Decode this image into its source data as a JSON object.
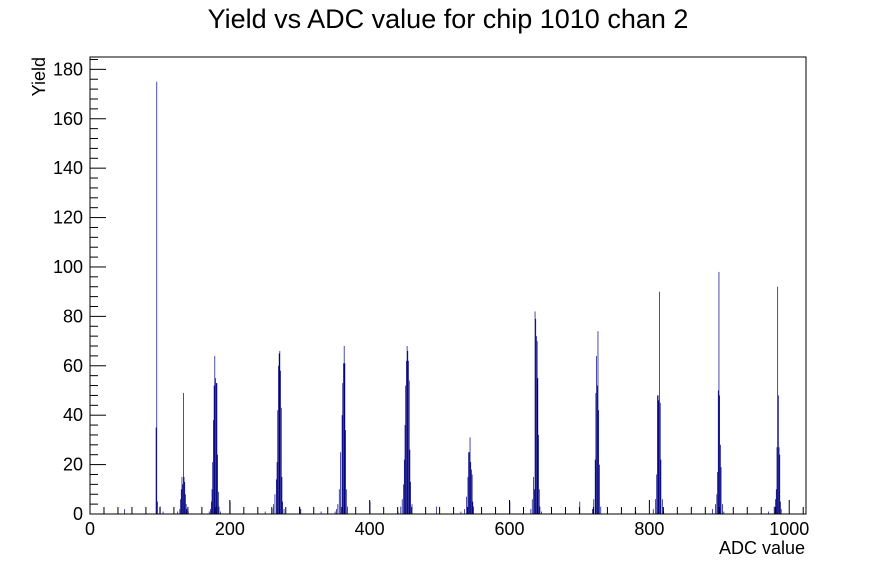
{
  "chart_data": {
    "type": "bar",
    "title": "Yield vs ADC value for chip 1010 chan 2",
    "xlabel": "ADC value",
    "ylabel": "Yield",
    "xlim": [
      0,
      1024
    ],
    "ylim": [
      0,
      185
    ],
    "x_ticks": [
      "0",
      "200",
      "400",
      "600",
      "800",
      "1000"
    ],
    "y_ticks": [
      "0",
      "20",
      "40",
      "60",
      "80",
      "100",
      "120",
      "140",
      "160",
      "180"
    ],
    "grid": false,
    "legend": "none",
    "bin_width": 1,
    "bins": [
      [
        49,
        2
      ],
      [
        94,
        35
      ],
      [
        95,
        175
      ],
      [
        96,
        5
      ],
      [
        100,
        3
      ],
      [
        104,
        1
      ],
      [
        125,
        1
      ],
      [
        128,
        2
      ],
      [
        129,
        6
      ],
      [
        130,
        10
      ],
      [
        131,
        15
      ],
      [
        132,
        12
      ],
      [
        133,
        49
      ],
      [
        134,
        15
      ],
      [
        135,
        13
      ],
      [
        136,
        8
      ],
      [
        137,
        4
      ],
      [
        138,
        2
      ],
      [
        140,
        1
      ],
      [
        170,
        1
      ],
      [
        172,
        2
      ],
      [
        173,
        5
      ],
      [
        174,
        10
      ],
      [
        175,
        21
      ],
      [
        176,
        38
      ],
      [
        177,
        52
      ],
      [
        178,
        64
      ],
      [
        179,
        55
      ],
      [
        180,
        53
      ],
      [
        181,
        53
      ],
      [
        182,
        24
      ],
      [
        183,
        9
      ],
      [
        184,
        3
      ],
      [
        186,
        1
      ],
      [
        200,
        5
      ],
      [
        250,
        1
      ],
      [
        260,
        2
      ],
      [
        262,
        4
      ],
      [
        264,
        8
      ],
      [
        266,
        14
      ],
      [
        267,
        21
      ],
      [
        268,
        42
      ],
      [
        269,
        60
      ],
      [
        270,
        65
      ],
      [
        271,
        66
      ],
      [
        272,
        58
      ],
      [
        273,
        43
      ],
      [
        274,
        15
      ],
      [
        275,
        5
      ],
      [
        277,
        2
      ],
      [
        299,
        3
      ],
      [
        301,
        2
      ],
      [
        330,
        1
      ],
      [
        350,
        1
      ],
      [
        352,
        2
      ],
      [
        354,
        4
      ],
      [
        356,
        10
      ],
      [
        358,
        25
      ],
      [
        360,
        40
      ],
      [
        361,
        53
      ],
      [
        362,
        61
      ],
      [
        363,
        68
      ],
      [
        364,
        61
      ],
      [
        365,
        34
      ],
      [
        366,
        10
      ],
      [
        368,
        3
      ],
      [
        400,
        5
      ],
      [
        440,
        1
      ],
      [
        444,
        3
      ],
      [
        446,
        6
      ],
      [
        448,
        12
      ],
      [
        449,
        22
      ],
      [
        450,
        36
      ],
      [
        451,
        52
      ],
      [
        452,
        62
      ],
      [
        453,
        68
      ],
      [
        454,
        66
      ],
      [
        455,
        62
      ],
      [
        456,
        54
      ],
      [
        457,
        26
      ],
      [
        458,
        13
      ],
      [
        460,
        4
      ],
      [
        495,
        3
      ],
      [
        530,
        1
      ],
      [
        535,
        2
      ],
      [
        538,
        7
      ],
      [
        540,
        15
      ],
      [
        541,
        25
      ],
      [
        542,
        25
      ],
      [
        543,
        31
      ],
      [
        544,
        21
      ],
      [
        545,
        18
      ],
      [
        546,
        16
      ],
      [
        547,
        5
      ],
      [
        548,
        3
      ],
      [
        600,
        5
      ],
      [
        630,
        2
      ],
      [
        632,
        6
      ],
      [
        634,
        15
      ],
      [
        635,
        10
      ],
      [
        636,
        82
      ],
      [
        637,
        79
      ],
      [
        638,
        72
      ],
      [
        639,
        70
      ],
      [
        640,
        55
      ],
      [
        641,
        32
      ],
      [
        642,
        10
      ],
      [
        643,
        3
      ],
      [
        645,
        1
      ],
      [
        700,
        5
      ],
      [
        718,
        2
      ],
      [
        720,
        6
      ],
      [
        722,
        22
      ],
      [
        723,
        49
      ],
      [
        724,
        64
      ],
      [
        725,
        52
      ],
      [
        726,
        74
      ],
      [
        727,
        42
      ],
      [
        728,
        20
      ],
      [
        730,
        3
      ],
      [
        780,
        1
      ],
      [
        805,
        2
      ],
      [
        808,
        6
      ],
      [
        810,
        16
      ],
      [
        811,
        48
      ],
      [
        812,
        48
      ],
      [
        813,
        46
      ],
      [
        814,
        90
      ],
      [
        815,
        45
      ],
      [
        816,
        22
      ],
      [
        818,
        6
      ],
      [
        820,
        1
      ],
      [
        890,
        2
      ],
      [
        894,
        4
      ],
      [
        896,
        8
      ],
      [
        897,
        17
      ],
      [
        898,
        50
      ],
      [
        899,
        98
      ],
      [
        900,
        48
      ],
      [
        901,
        28
      ],
      [
        902,
        19
      ],
      [
        904,
        4
      ],
      [
        906,
        1
      ],
      [
        970,
        1
      ],
      [
        978,
        3
      ],
      [
        980,
        6
      ],
      [
        981,
        10
      ],
      [
        982,
        27
      ],
      [
        983,
        92
      ],
      [
        984,
        48
      ],
      [
        985,
        27
      ],
      [
        986,
        24
      ],
      [
        987,
        5
      ],
      [
        988,
        2
      ]
    ]
  }
}
